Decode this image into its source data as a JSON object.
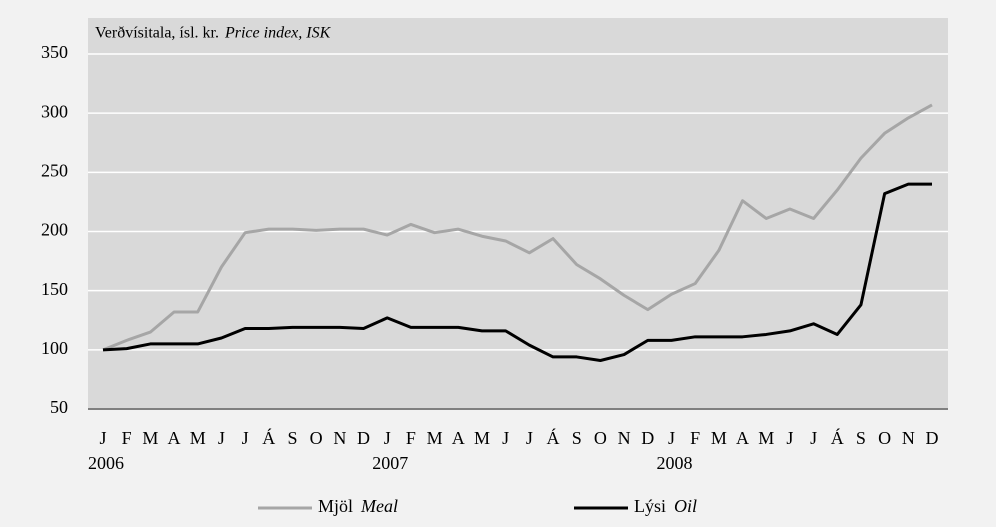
{
  "chart_data": {
    "type": "line",
    "title": "Verðvísitala, ísl. kr.",
    "title_en": "Price index, ISK",
    "categories": [
      "J",
      "F",
      "M",
      "A",
      "M",
      "J",
      "J",
      "Á",
      "S",
      "O",
      "N",
      "D",
      "J",
      "F",
      "M",
      "A",
      "M",
      "J",
      "J",
      "Á",
      "S",
      "O",
      "N",
      "D",
      "J",
      "F",
      "M",
      "A",
      "M",
      "J",
      "J",
      "Á",
      "S",
      "O",
      "N",
      "D"
    ],
    "category_groups": [
      "2006",
      "2007",
      "2008"
    ],
    "series": [
      {
        "name": "Mjöl",
        "name_en": "Meal",
        "color": "#a6a6a6",
        "values": [
          100,
          108,
          115,
          132,
          132,
          170,
          199,
          202,
          202,
          201,
          202,
          202,
          197,
          206,
          199,
          202,
          196,
          192,
          182,
          194,
          172,
          160,
          146,
          134,
          147,
          156,
          184,
          226,
          211,
          219,
          211,
          235,
          262,
          283,
          296,
          307
        ]
      },
      {
        "name": "Lýsi",
        "name_en": "Oil",
        "color": "#000000",
        "values": [
          100,
          101,
          105,
          105,
          105,
          110,
          118,
          118,
          119,
          119,
          119,
          118,
          127,
          119,
          119,
          119,
          116,
          116,
          104,
          94,
          94,
          91,
          96,
          108,
          108,
          111,
          111,
          111,
          113,
          116,
          122,
          113,
          138,
          232,
          240,
          240
        ]
      }
    ],
    "ylim": [
      50,
      350
    ],
    "yticks": [
      50,
      100,
      150,
      200,
      250,
      300,
      350
    ],
    "grid": true
  }
}
